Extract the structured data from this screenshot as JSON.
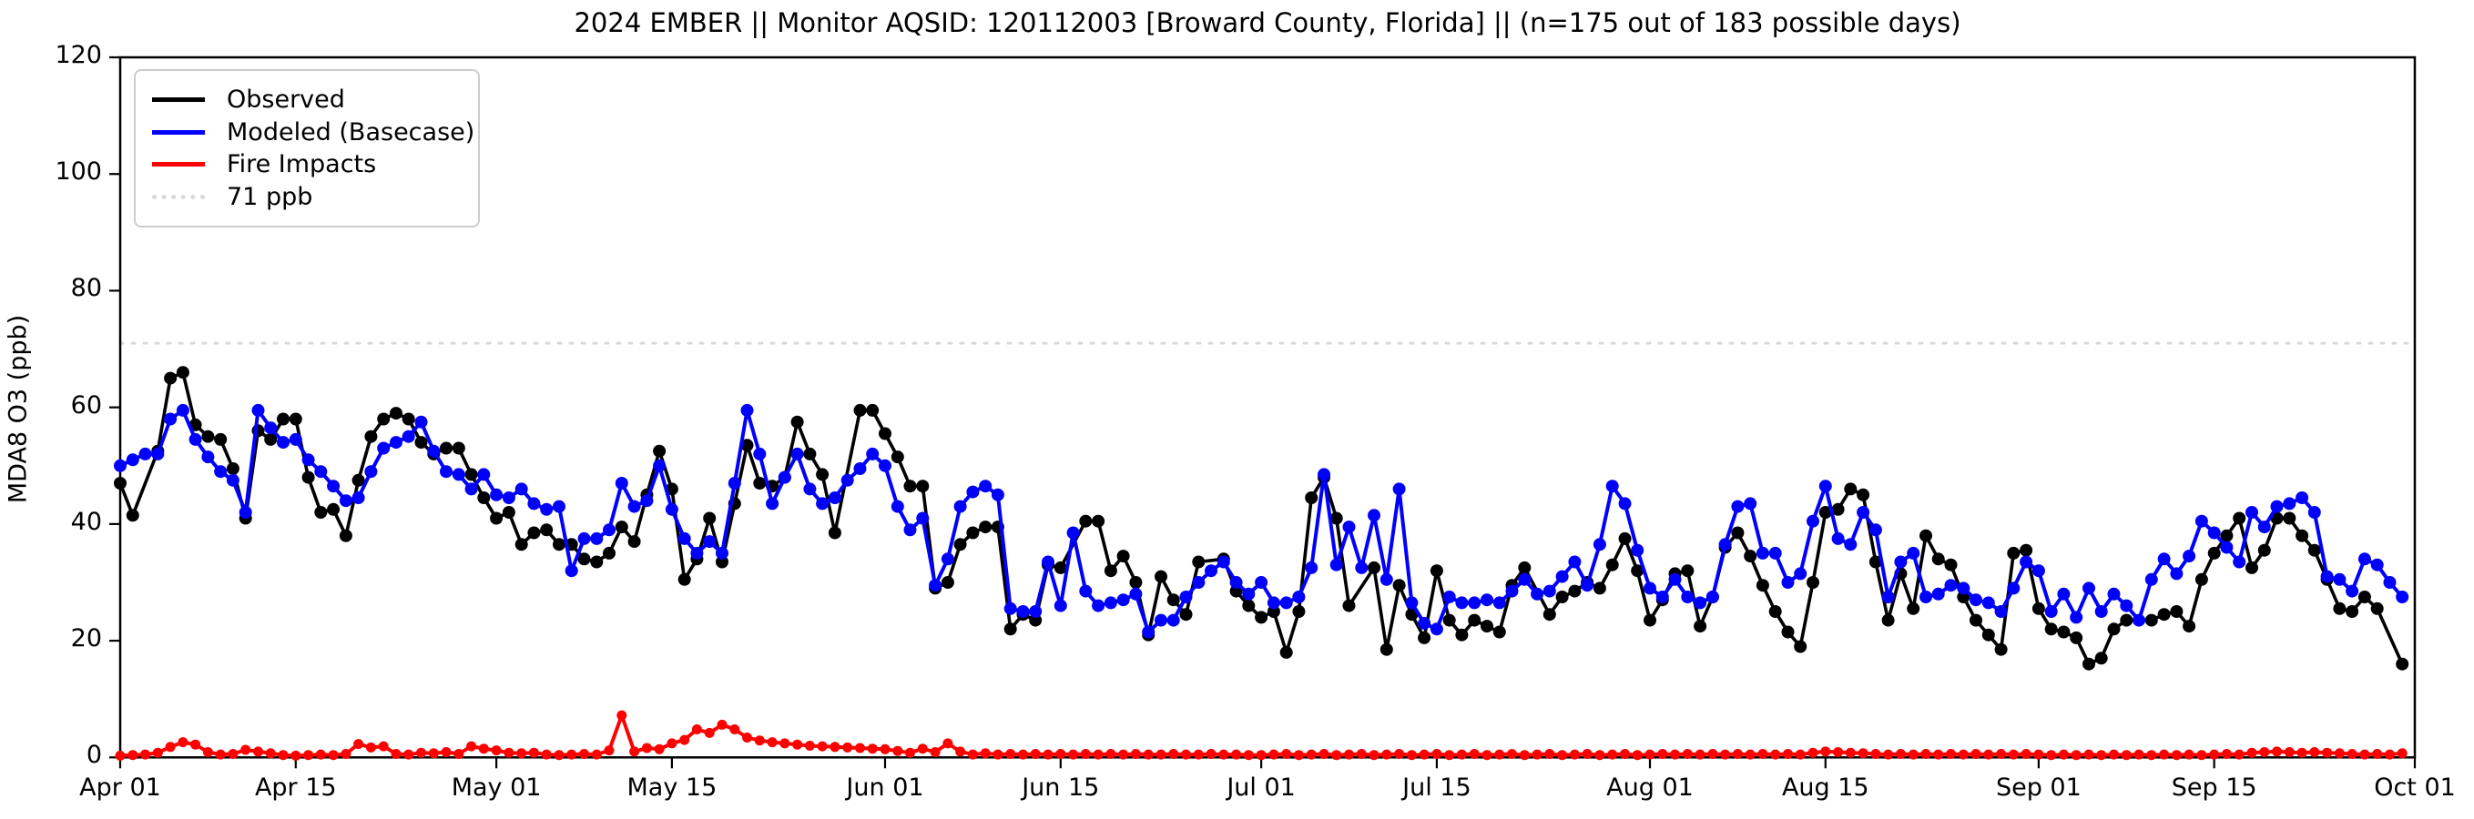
{
  "title": "2024 EMBER || Monitor AQSID: 120112003 [Broward County, Florida] || (n=175 out of 183 possible days)",
  "y_axis": {
    "label": "MDA8 O3 (ppb)",
    "ticks": [
      0,
      20,
      40,
      60,
      80,
      100,
      120
    ],
    "range": [
      0,
      120
    ]
  },
  "x_axis": {
    "tick_labels": [
      "Apr 01",
      "Apr 15",
      "May 01",
      "May 15",
      "Jun 01",
      "Jun 15",
      "Jul 01",
      "Jul 15",
      "Aug 01",
      "Aug 15",
      "Sep 01",
      "Sep 15",
      "Oct 01"
    ],
    "tick_days": [
      0,
      14,
      30,
      44,
      61,
      75,
      91,
      105,
      122,
      136,
      153,
      167,
      183
    ],
    "range_days": [
      0,
      183
    ]
  },
  "colors": {
    "observed": "#000000",
    "modeled": "#0000ff",
    "fire": "#ff0000",
    "threshold": "#d9d9d9",
    "axis": "#000000"
  },
  "chart_data": {
    "type": "line",
    "title": "2024 EMBER || Monitor AQSID: 120112003 [Broward County, Florida] || (n=175 out of 183 possible days)",
    "xlabel": "",
    "ylabel": "MDA8 O3 (ppb)",
    "ylim": [
      0,
      120
    ],
    "x_unit": "days since Apr 01 2024 (daily values, Apr 01 - Sep 30)",
    "n_observed": 175,
    "n_possible": 183,
    "threshold": {
      "label": "71 ppb",
      "value": 71,
      "style": "dotted",
      "color": "#d9d9d9"
    },
    "legend_position": "upper left",
    "grid": false,
    "series": [
      {
        "name": "Observed",
        "color": "#000000",
        "style": "solid-with-markers",
        "values": [
          47,
          41.5,
          null,
          52.5,
          65,
          66,
          57,
          55,
          54.5,
          49.5,
          41,
          56,
          54.5,
          58,
          58,
          48,
          42,
          42.5,
          38,
          47.5,
          55,
          58,
          59,
          58,
          54,
          52,
          53,
          53,
          48.5,
          44.5,
          41,
          42,
          36.5,
          38.5,
          39,
          36.5,
          36.5,
          34,
          33.5,
          35,
          39.5,
          37,
          45,
          52.5,
          46,
          30.5,
          34,
          41,
          33.5,
          43.5,
          53.5,
          47,
          46.5,
          48,
          57.5,
          52,
          48.5,
          38.5,
          null,
          59.5,
          59.5,
          55.5,
          51.5,
          46.5,
          46.5,
          29,
          30,
          36.5,
          38.5,
          39.5,
          39.5,
          22,
          24.5,
          23.5,
          33,
          32.5,
          null,
          40.5,
          40.5,
          32,
          34.5,
          30,
          21,
          31,
          27,
          24.5,
          33.5,
          null,
          34,
          28.5,
          26,
          24,
          25,
          18,
          25,
          44.5,
          48,
          41,
          26,
          null,
          32.5,
          18.5,
          29.5,
          24.5,
          20.5,
          32,
          23.5,
          21,
          23.5,
          22.5,
          21.5,
          29.5,
          32.5,
          null,
          24.5,
          27.5,
          28.5,
          30,
          29,
          33,
          37.5,
          32,
          23.5,
          27,
          31.5,
          32,
          22.5,
          27.5,
          36,
          38.5,
          34.5,
          29.5,
          25,
          21.5,
          19,
          30,
          42,
          42.5,
          46,
          45,
          33.5,
          23.5,
          31.5,
          25.5,
          38,
          34,
          33,
          27.5,
          23.5,
          21,
          18.5,
          35,
          35.5,
          25.5,
          22,
          21.5,
          20.5,
          16,
          17,
          22,
          23.5,
          null,
          23.5,
          24.5,
          25,
          22.5,
          30.5,
          35,
          38,
          41,
          32.5,
          35.5,
          41,
          41,
          38,
          35.5,
          30.5,
          25.5,
          25,
          27.5,
          25.5,
          null,
          16
        ]
      },
      {
        "name": "Modeled (Basecase)",
        "color": "#0000ff",
        "style": "solid-with-markers",
        "values": [
          50,
          51,
          52,
          52,
          58,
          59.5,
          54.5,
          51.5,
          49,
          47.5,
          42,
          59.5,
          56.5,
          54,
          54.5,
          51,
          49,
          46.5,
          44,
          44.5,
          49,
          53,
          54,
          55,
          57.5,
          52.5,
          49,
          48.5,
          46,
          48.5,
          45,
          44.5,
          46,
          43.5,
          42.5,
          43,
          32,
          37.5,
          37.5,
          39,
          47,
          43,
          44,
          50,
          42.5,
          37.5,
          35,
          37,
          35,
          47,
          59.5,
          52,
          43.5,
          48,
          52,
          46,
          43.5,
          44.5,
          47.5,
          49.5,
          52,
          50,
          43,
          39,
          41,
          29.5,
          34,
          43,
          45.5,
          46.5,
          45,
          25.5,
          25,
          25,
          33.5,
          26,
          38.5,
          28.5,
          26,
          26.5,
          27,
          28,
          21.5,
          23.5,
          23.5,
          27.5,
          30,
          32,
          33.5,
          30,
          28,
          30,
          26.5,
          26.5,
          27.5,
          32.5,
          48.5,
          33,
          39.5,
          32.5,
          41.5,
          30.5,
          46,
          26.5,
          23,
          22,
          27.5,
          26.5,
          26.5,
          27,
          26.5,
          28.5,
          30.5,
          28,
          28.5,
          31,
          33.5,
          29.5,
          36.5,
          46.5,
          43.5,
          35.5,
          29,
          27.5,
          30.5,
          27.5,
          26.5,
          27.5,
          36.5,
          43,
          43.5,
          35,
          35,
          30,
          31.5,
          40.5,
          46.5,
          37.5,
          36.5,
          42,
          39,
          27.5,
          33.5,
          35,
          27.5,
          28,
          29.5,
          29,
          27,
          26.5,
          25,
          29,
          33.5,
          32,
          25,
          28,
          24,
          29,
          25,
          28,
          26,
          23.5,
          30.5,
          34,
          31.5,
          34.5,
          40.5,
          38.5,
          36,
          33.5,
          42,
          39.5,
          43,
          43.5,
          44.5,
          42,
          31,
          30.5,
          28.5,
          34,
          33,
          30,
          27.5
        ]
      },
      {
        "name": "Fire Impacts",
        "color": "#ff0000",
        "style": "solid-with-markers",
        "values": [
          0.3,
          0.4,
          0.5,
          0.8,
          1.8,
          2.6,
          2.2,
          0.9,
          0.5,
          0.6,
          1.3,
          1.0,
          0.7,
          0.4,
          0.3,
          0.4,
          0.5,
          0.4,
          0.6,
          2.3,
          1.7,
          1.9,
          0.6,
          0.5,
          0.8,
          0.7,
          0.9,
          0.6,
          1.9,
          1.5,
          1.2,
          0.8,
          0.7,
          0.8,
          0.5,
          0.4,
          0.5,
          0.6,
          0.5,
          1.2,
          7.2,
          1.0,
          1.6,
          1.4,
          2.4,
          3.0,
          4.8,
          4.2,
          5.6,
          4.8,
          3.4,
          2.9,
          2.6,
          2.4,
          2.2,
          2.0,
          1.9,
          1.8,
          1.7,
          1.6,
          1.5,
          1.4,
          1.1,
          0.8,
          1.5,
          0.9,
          2.4,
          1.0,
          0.5,
          0.7,
          0.5,
          0.6,
          0.5,
          0.6,
          0.5,
          0.6,
          0.5,
          0.6,
          0.5,
          0.6,
          0.5,
          0.6,
          0.5,
          0.5,
          0.6,
          0.5,
          0.5,
          0.6,
          0.5,
          0.5,
          0.4,
          0.4,
          0.5,
          0.6,
          0.4,
          0.5,
          0.6,
          0.4,
          0.5,
          0.6,
          0.4,
          0.5,
          0.6,
          0.4,
          0.5,
          0.6,
          0.4,
          0.5,
          0.6,
          0.4,
          0.5,
          0.6,
          0.4,
          0.5,
          0.6,
          0.4,
          0.5,
          0.6,
          0.4,
          0.5,
          0.6,
          0.4,
          0.5,
          0.6,
          0.5,
          0.6,
          0.5,
          0.6,
          0.5,
          0.6,
          0.5,
          0.6,
          0.5,
          0.6,
          0.5,
          0.8,
          1.0,
          0.9,
          0.8,
          0.7,
          0.6,
          0.5,
          0.6,
          0.5,
          0.6,
          0.5,
          0.6,
          0.5,
          0.6,
          0.5,
          0.6,
          0.5,
          0.6,
          0.5,
          0.4,
          0.5,
          0.4,
          0.5,
          0.4,
          0.5,
          0.4,
          0.5,
          0.4,
          0.5,
          0.4,
          0.5,
          0.4,
          0.5,
          0.6,
          0.5,
          0.8,
          0.9,
          1.0,
          0.9,
          0.8,
          0.9,
          0.8,
          0.7,
          0.6,
          0.5,
          0.6,
          0.5,
          0.7
        ]
      }
    ]
  },
  "legend": {
    "entries": [
      {
        "label": "Observed",
        "color": "#000000",
        "dotted": false
      },
      {
        "label": "Modeled (Basecase)",
        "color": "#0000ff",
        "dotted": false
      },
      {
        "label": "Fire Impacts",
        "color": "#ff0000",
        "dotted": false
      },
      {
        "label": "71 ppb",
        "color": "#d9d9d9",
        "dotted": true
      }
    ]
  }
}
